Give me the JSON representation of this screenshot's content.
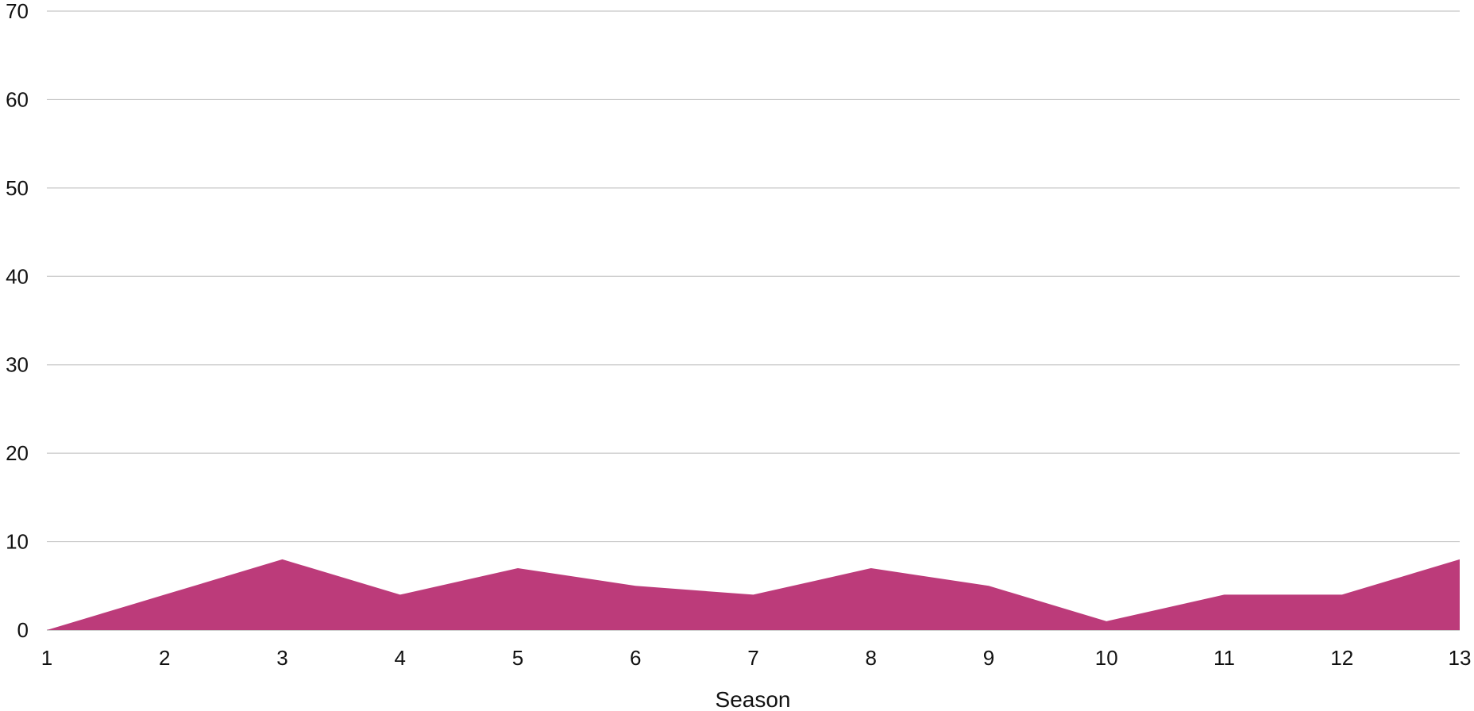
{
  "chart_data": {
    "type": "area",
    "x": [
      1,
      2,
      3,
      4,
      5,
      6,
      7,
      8,
      9,
      10,
      11,
      12,
      13
    ],
    "series": [
      {
        "values": [
          0,
          4,
          8,
          4,
          7,
          5,
          4,
          7,
          5,
          1,
          4,
          4,
          8
        ],
        "color": "#bc3b7a"
      }
    ],
    "xlabel": "Season",
    "ylabel": "",
    "xlim": [
      1,
      13
    ],
    "ylim": [
      0,
      70
    ],
    "y_ticks": [
      0,
      10,
      20,
      30,
      40,
      50,
      60,
      70
    ],
    "x_ticks": [
      1,
      2,
      3,
      4,
      5,
      6,
      7,
      8,
      9,
      10,
      11,
      12,
      13
    ],
    "grid": true,
    "legend": "none"
  }
}
